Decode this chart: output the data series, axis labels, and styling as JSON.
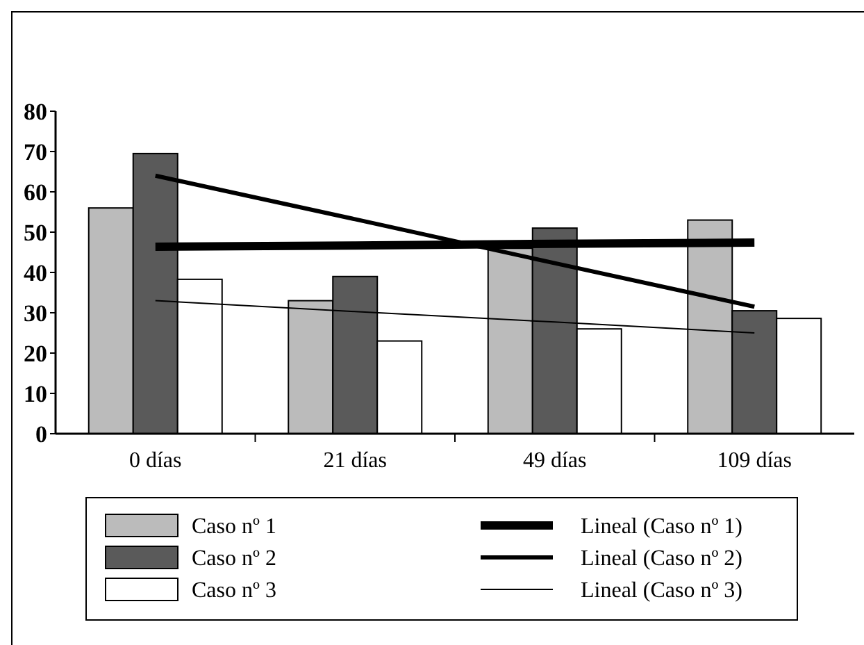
{
  "chart_data": {
    "type": "bar",
    "categories": [
      "0 días",
      "21 días",
      "49 días",
      "109 días"
    ],
    "series": [
      {
        "name": "Caso nº 1",
        "color": "#bbbbbb",
        "values": [
          56,
          33,
          46,
          53
        ]
      },
      {
        "name": "Caso nº 2",
        "color": "#5a5a5a",
        "values": [
          69.5,
          39,
          51,
          30.5
        ]
      },
      {
        "name": "Caso nº 3",
        "color": "#ffffff",
        "values": [
          38.3,
          23,
          26,
          28.6
        ]
      },
      {
        "name": "Lineal (Caso nº 1)",
        "type": "line",
        "color": "#000000",
        "values": [
          46.4,
          46.7,
          47.1,
          47.4
        ]
      },
      {
        "name": "Lineal (Caso nº 2)",
        "type": "line",
        "color": "#000000",
        "values": [
          64,
          53.2,
          42.3,
          31.5
        ]
      },
      {
        "name": "Lineal (Caso nº 3)",
        "type": "line",
        "color": "#000000",
        "values": [
          33,
          30.3,
          27.7,
          25
        ]
      }
    ],
    "ylim": [
      0,
      80
    ],
    "yticks": [
      0,
      10,
      20,
      30,
      40,
      50,
      60,
      70,
      80
    ],
    "grid": false,
    "legend": "bottom"
  }
}
